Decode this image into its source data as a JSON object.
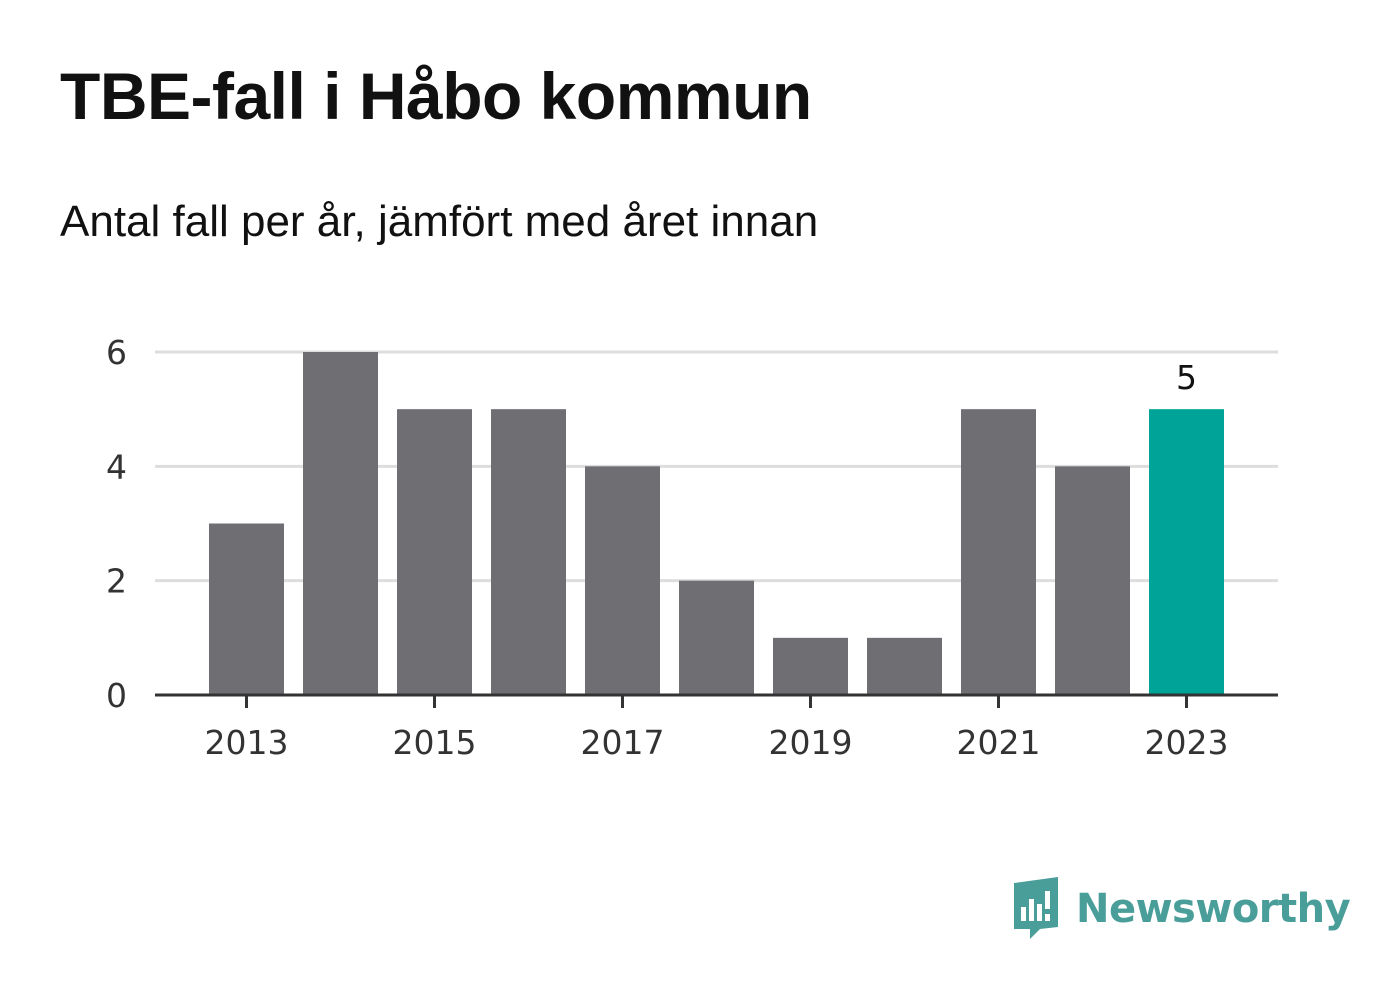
{
  "title": "TBE-fall i Håbo kommun",
  "subtitle": "Antal fall per år, jämfört med året innan",
  "brand": {
    "name": "Newsworthy",
    "color": "#4a9e9a",
    "logo_icon": "bar-chart-speech-bubble-icon"
  },
  "colors": {
    "bar": "#6f6e73",
    "highlight": "#00a398",
    "grid": "#dddddd",
    "axis": "#333333"
  },
  "chart_data": {
    "type": "bar",
    "x": [
      2013,
      2014,
      2015,
      2016,
      2017,
      2018,
      2019,
      2020,
      2021,
      2022,
      2023
    ],
    "values": [
      3,
      6,
      5,
      5,
      4,
      2,
      1,
      1,
      5,
      4,
      5
    ],
    "highlight_index": 10,
    "x_tick_labels": [
      "2013",
      "2015",
      "2017",
      "2019",
      "2021",
      "2023"
    ],
    "y_ticks": [
      0,
      2,
      4,
      6
    ],
    "ylim": [
      0,
      6
    ],
    "grid": true,
    "legend": "none",
    "data_labels": [
      {
        "index": 10,
        "text": "5"
      }
    ]
  }
}
